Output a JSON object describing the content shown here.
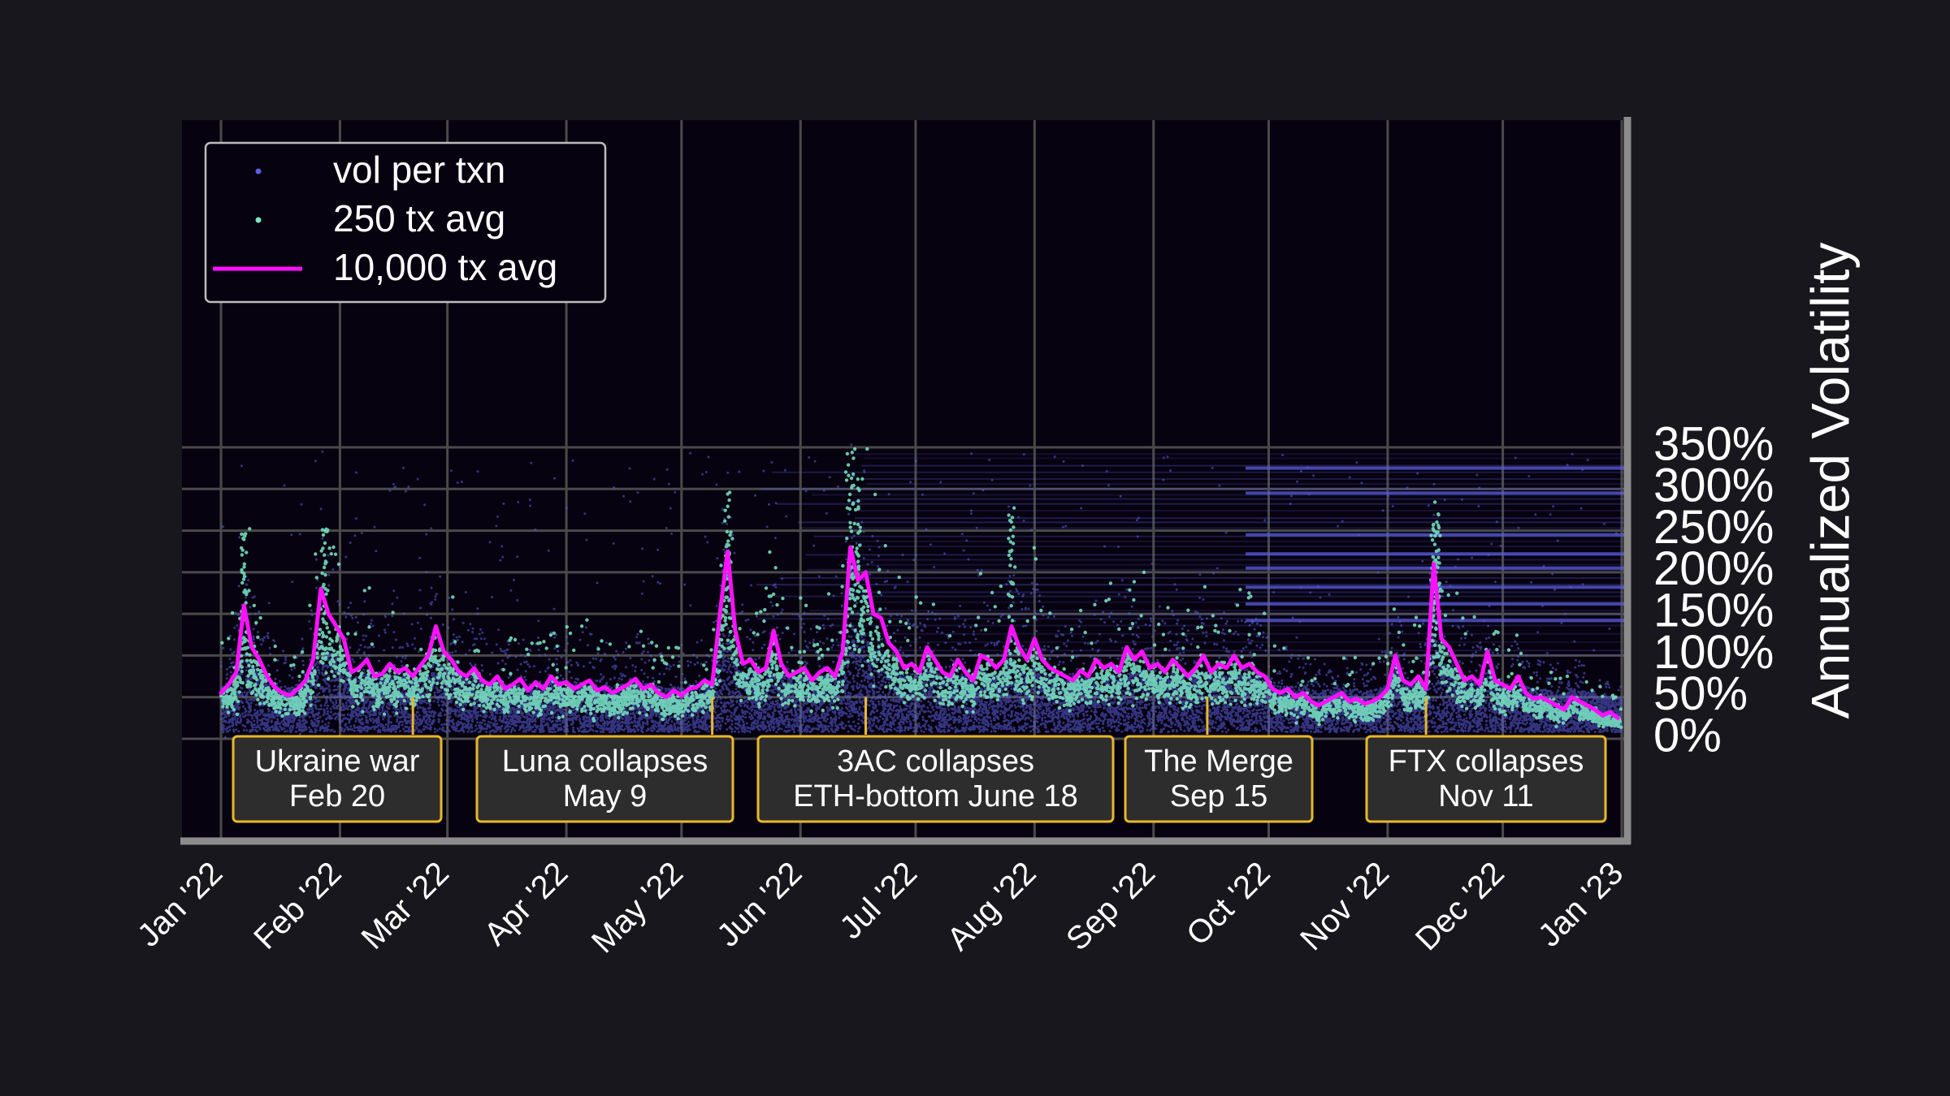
{
  "chart_data": {
    "type": "scatter",
    "title": "",
    "xlabel": "",
    "ylabel": "Annualized Volatility",
    "y_axis_side": "right",
    "ylim": [
      0,
      350
    ],
    "y_ticks": [
      {
        "value": 0,
        "label": "0%"
      },
      {
        "value": 50,
        "label": "50%"
      },
      {
        "value": 100,
        "label": "100%"
      },
      {
        "value": 150,
        "label": "150%"
      },
      {
        "value": 200,
        "label": "200%"
      },
      {
        "value": 250,
        "label": "250%"
      },
      {
        "value": 300,
        "label": "300%"
      },
      {
        "value": 350,
        "label": "350%"
      }
    ],
    "x_range": [
      "2022-01-01",
      "2023-01-01"
    ],
    "x_ticks": [
      {
        "date": "2022-01-01",
        "label": "Jan '22"
      },
      {
        "date": "2022-02-01",
        "label": "Feb '22"
      },
      {
        "date": "2022-03-01",
        "label": "Mar '22"
      },
      {
        "date": "2022-04-01",
        "label": "Apr '22"
      },
      {
        "date": "2022-05-01",
        "label": "May '22"
      },
      {
        "date": "2022-06-01",
        "label": "Jun '22"
      },
      {
        "date": "2022-07-01",
        "label": "Jul '22"
      },
      {
        "date": "2022-08-01",
        "label": "Aug '22"
      },
      {
        "date": "2022-09-01",
        "label": "Sep '22"
      },
      {
        "date": "2022-10-01",
        "label": "Oct '22"
      },
      {
        "date": "2022-11-01",
        "label": "Nov '22"
      },
      {
        "date": "2022-12-01",
        "label": "Dec '22"
      },
      {
        "date": "2023-01-01",
        "label": "Jan '23"
      }
    ],
    "grid": true,
    "legend_position": "top-left",
    "colors": {
      "background": "#18171d",
      "plot_area": "#07020f",
      "grid": "#4a4a4a",
      "axis": "#8c8c8c",
      "text": "#ffffff",
      "vol_per_txn": "#5a5ee0",
      "avg_250": "#7ae8c6",
      "avg_10000": "#ff10ff",
      "annotation_border": "#e8b82a",
      "annotation_fill": "#2d2d2d"
    },
    "legend": [
      {
        "label": "vol per txn",
        "marker": "dot",
        "color": "#5a5ee0"
      },
      {
        "label": "250 tx avg",
        "marker": "dot",
        "color": "#7ae8c6"
      },
      {
        "label": "10,000 tx avg",
        "marker": "line",
        "color": "#ff10ff"
      }
    ],
    "series": [
      {
        "name": "10,000 tx avg",
        "kind": "line",
        "points": [
          [
            "2022-01-01",
            55
          ],
          [
            "2022-01-03",
            65
          ],
          [
            "2022-01-05",
            80
          ],
          [
            "2022-01-07",
            160
          ],
          [
            "2022-01-09",
            110
          ],
          [
            "2022-01-11",
            95
          ],
          [
            "2022-01-13",
            75
          ],
          [
            "2022-01-15",
            62
          ],
          [
            "2022-01-17",
            55
          ],
          [
            "2022-01-19",
            52
          ],
          [
            "2022-01-21",
            60
          ],
          [
            "2022-01-23",
            70
          ],
          [
            "2022-01-25",
            95
          ],
          [
            "2022-01-27",
            180
          ],
          [
            "2022-01-29",
            150
          ],
          [
            "2022-01-31",
            135
          ],
          [
            "2022-02-02",
            120
          ],
          [
            "2022-02-04",
            80
          ],
          [
            "2022-02-06",
            85
          ],
          [
            "2022-02-08",
            95
          ],
          [
            "2022-02-10",
            75
          ],
          [
            "2022-02-12",
            78
          ],
          [
            "2022-02-14",
            90
          ],
          [
            "2022-02-16",
            80
          ],
          [
            "2022-02-18",
            85
          ],
          [
            "2022-02-20",
            75
          ],
          [
            "2022-02-22",
            88
          ],
          [
            "2022-02-24",
            100
          ],
          [
            "2022-02-26",
            135
          ],
          [
            "2022-02-28",
            105
          ],
          [
            "2022-03-02",
            95
          ],
          [
            "2022-03-04",
            80
          ],
          [
            "2022-03-06",
            75
          ],
          [
            "2022-03-08",
            85
          ],
          [
            "2022-03-10",
            70
          ],
          [
            "2022-03-12",
            65
          ],
          [
            "2022-03-14",
            75
          ],
          [
            "2022-03-16",
            60
          ],
          [
            "2022-03-18",
            65
          ],
          [
            "2022-03-20",
            72
          ],
          [
            "2022-03-22",
            58
          ],
          [
            "2022-03-24",
            68
          ],
          [
            "2022-03-26",
            60
          ],
          [
            "2022-03-28",
            75
          ],
          [
            "2022-03-30",
            65
          ],
          [
            "2022-04-01",
            68
          ],
          [
            "2022-04-03",
            60
          ],
          [
            "2022-04-05",
            65
          ],
          [
            "2022-04-07",
            70
          ],
          [
            "2022-04-09",
            58
          ],
          [
            "2022-04-11",
            62
          ],
          [
            "2022-04-13",
            55
          ],
          [
            "2022-04-15",
            60
          ],
          [
            "2022-04-17",
            65
          ],
          [
            "2022-04-19",
            72
          ],
          [
            "2022-04-21",
            60
          ],
          [
            "2022-04-23",
            65
          ],
          [
            "2022-04-25",
            55
          ],
          [
            "2022-04-27",
            50
          ],
          [
            "2022-04-29",
            58
          ],
          [
            "2022-05-01",
            52
          ],
          [
            "2022-05-03",
            60
          ],
          [
            "2022-05-05",
            62
          ],
          [
            "2022-05-07",
            70
          ],
          [
            "2022-05-09",
            65
          ],
          [
            "2022-05-11",
            150
          ],
          [
            "2022-05-13",
            225
          ],
          [
            "2022-05-15",
            130
          ],
          [
            "2022-05-17",
            90
          ],
          [
            "2022-05-19",
            95
          ],
          [
            "2022-05-21",
            80
          ],
          [
            "2022-05-23",
            85
          ],
          [
            "2022-05-25",
            130
          ],
          [
            "2022-05-27",
            90
          ],
          [
            "2022-05-29",
            75
          ],
          [
            "2022-05-31",
            80
          ],
          [
            "2022-06-02",
            85
          ],
          [
            "2022-06-04",
            70
          ],
          [
            "2022-06-06",
            80
          ],
          [
            "2022-06-08",
            85
          ],
          [
            "2022-06-10",
            75
          ],
          [
            "2022-06-12",
            105
          ],
          [
            "2022-06-14",
            230
          ],
          [
            "2022-06-16",
            190
          ],
          [
            "2022-06-18",
            200
          ],
          [
            "2022-06-20",
            150
          ],
          [
            "2022-06-22",
            145
          ],
          [
            "2022-06-24",
            115
          ],
          [
            "2022-06-26",
            105
          ],
          [
            "2022-06-28",
            85
          ],
          [
            "2022-06-30",
            90
          ],
          [
            "2022-07-02",
            80
          ],
          [
            "2022-07-04",
            110
          ],
          [
            "2022-07-06",
            95
          ],
          [
            "2022-07-08",
            80
          ],
          [
            "2022-07-10",
            75
          ],
          [
            "2022-07-12",
            95
          ],
          [
            "2022-07-14",
            80
          ],
          [
            "2022-07-16",
            70
          ],
          [
            "2022-07-18",
            100
          ],
          [
            "2022-07-20",
            95
          ],
          [
            "2022-07-22",
            85
          ],
          [
            "2022-07-24",
            95
          ],
          [
            "2022-07-26",
            135
          ],
          [
            "2022-07-28",
            110
          ],
          [
            "2022-07-30",
            95
          ],
          [
            "2022-08-01",
            120
          ],
          [
            "2022-08-03",
            95
          ],
          [
            "2022-08-05",
            85
          ],
          [
            "2022-08-07",
            80
          ],
          [
            "2022-08-09",
            75
          ],
          [
            "2022-08-11",
            70
          ],
          [
            "2022-08-13",
            82
          ],
          [
            "2022-08-15",
            75
          ],
          [
            "2022-08-17",
            95
          ],
          [
            "2022-08-19",
            85
          ],
          [
            "2022-08-21",
            90
          ],
          [
            "2022-08-23",
            80
          ],
          [
            "2022-08-25",
            110
          ],
          [
            "2022-08-27",
            95
          ],
          [
            "2022-08-29",
            105
          ],
          [
            "2022-08-31",
            85
          ],
          [
            "2022-09-02",
            90
          ],
          [
            "2022-09-04",
            80
          ],
          [
            "2022-09-06",
            95
          ],
          [
            "2022-09-08",
            85
          ],
          [
            "2022-09-10",
            75
          ],
          [
            "2022-09-12",
            85
          ],
          [
            "2022-09-14",
            100
          ],
          [
            "2022-09-16",
            80
          ],
          [
            "2022-09-18",
            90
          ],
          [
            "2022-09-20",
            85
          ],
          [
            "2022-09-22",
            100
          ],
          [
            "2022-09-24",
            85
          ],
          [
            "2022-09-26",
            90
          ],
          [
            "2022-09-28",
            80
          ],
          [
            "2022-09-30",
            75
          ],
          [
            "2022-10-02",
            60
          ],
          [
            "2022-10-04",
            55
          ],
          [
            "2022-10-06",
            60
          ],
          [
            "2022-10-08",
            50
          ],
          [
            "2022-10-10",
            55
          ],
          [
            "2022-10-12",
            45
          ],
          [
            "2022-10-14",
            40
          ],
          [
            "2022-10-16",
            45
          ],
          [
            "2022-10-18",
            50
          ],
          [
            "2022-10-20",
            55
          ],
          [
            "2022-10-22",
            45
          ],
          [
            "2022-10-24",
            48
          ],
          [
            "2022-10-26",
            42
          ],
          [
            "2022-10-28",
            45
          ],
          [
            "2022-10-30",
            50
          ],
          [
            "2022-11-01",
            60
          ],
          [
            "2022-11-03",
            100
          ],
          [
            "2022-11-05",
            70
          ],
          [
            "2022-11-07",
            65
          ],
          [
            "2022-11-09",
            75
          ],
          [
            "2022-11-11",
            60
          ],
          [
            "2022-11-13",
            210
          ],
          [
            "2022-11-15",
            120
          ],
          [
            "2022-11-17",
            110
          ],
          [
            "2022-11-19",
            90
          ],
          [
            "2022-11-21",
            70
          ],
          [
            "2022-11-23",
            75
          ],
          [
            "2022-11-25",
            65
          ],
          [
            "2022-11-27",
            105
          ],
          [
            "2022-11-29",
            70
          ],
          [
            "2022-12-01",
            65
          ],
          [
            "2022-12-03",
            60
          ],
          [
            "2022-12-05",
            75
          ],
          [
            "2022-12-07",
            55
          ],
          [
            "2022-12-09",
            48
          ],
          [
            "2022-12-11",
            50
          ],
          [
            "2022-12-13",
            45
          ],
          [
            "2022-12-15",
            40
          ],
          [
            "2022-12-17",
            35
          ],
          [
            "2022-12-19",
            50
          ],
          [
            "2022-12-21",
            45
          ],
          [
            "2022-12-23",
            40
          ],
          [
            "2022-12-25",
            35
          ],
          [
            "2022-12-27",
            28
          ],
          [
            "2022-12-29",
            32
          ],
          [
            "2022-12-31",
            25
          ]
        ]
      },
      {
        "name": "250 tx avg",
        "kind": "scatter",
        "visual_trend": "spreads roughly 0.4x to 2x around the 10,000 tx avg, with outliers up to about 345% near June 18"
      },
      {
        "name": "vol per txn",
        "kind": "scatter",
        "visual_trend": "dense band from about 10% up to about 60%, with sparse points reaching the top of the axis"
      }
    ],
    "annotations": [
      {
        "date": "2022-02-20",
        "line1": "Ukraine war",
        "line2": "Feb 20"
      },
      {
        "date": "2022-05-09",
        "line1": "Luna collapses",
        "line2": "May 9"
      },
      {
        "date": "2022-06-18",
        "line1": "3AC collapses",
        "line2": "ETH-bottom June 18"
      },
      {
        "date": "2022-09-15",
        "line1": "The Merge",
        "line2": "Sep 15"
      },
      {
        "date": "2022-11-11",
        "line1": "FTX collapses",
        "line2": "Nov 11"
      }
    ]
  }
}
